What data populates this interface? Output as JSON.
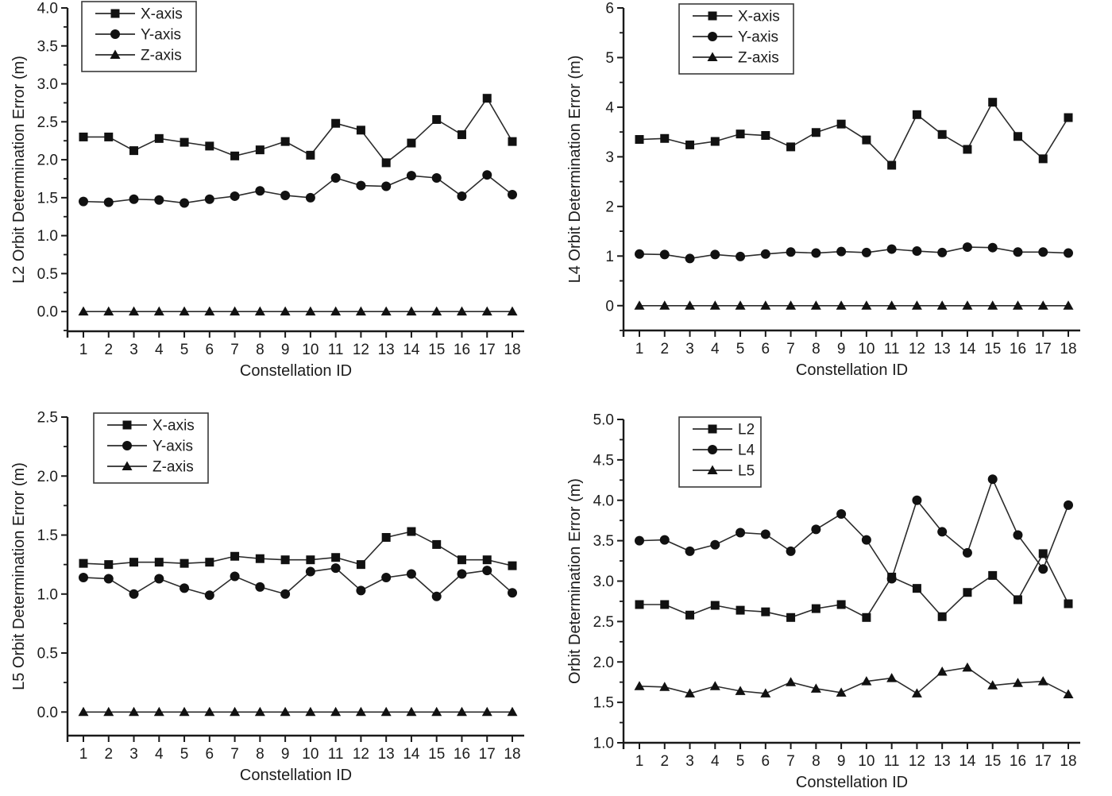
{
  "figure": {
    "background": "#ffffff",
    "rows": 2,
    "cols": 2
  },
  "colors": {
    "axis": "#1a1a1a",
    "line": "#2b2b2b",
    "marker": "#111111",
    "text": "#1c1c1c",
    "legend_border": "#3a3a3a",
    "legend_fill": "#ffffff"
  },
  "chart_data": [
    {
      "id": "l2-orbit-error",
      "type": "line",
      "title": "",
      "xlabel": "Constellation ID",
      "ylabel": "L2 Orbit Determination Error (m)",
      "x": [
        1,
        2,
        3,
        4,
        5,
        6,
        7,
        8,
        9,
        10,
        11,
        12,
        13,
        14,
        15,
        16,
        17,
        18
      ],
      "ylim": [
        0.0,
        4.0
      ],
      "ytick_step": 0.5,
      "ytick_minor_step": 0.25,
      "ytick_decimals": 1,
      "grid": false,
      "legend_position": "top-left-inside",
      "series": [
        {
          "name": "X-axis",
          "marker": "square",
          "values": [
            2.3,
            2.3,
            2.12,
            2.28,
            2.23,
            2.18,
            2.05,
            2.13,
            2.24,
            2.06,
            2.48,
            2.39,
            1.96,
            2.22,
            2.53,
            2.33,
            2.81,
            2.24
          ]
        },
        {
          "name": "Y-axis",
          "marker": "circle",
          "values": [
            1.45,
            1.44,
            1.48,
            1.47,
            1.43,
            1.48,
            1.52,
            1.59,
            1.53,
            1.5,
            1.76,
            1.66,
            1.65,
            1.79,
            1.76,
            1.52,
            1.8,
            1.54
          ]
        },
        {
          "name": "Z-axis",
          "marker": "triangle",
          "values": [
            0.0,
            0.0,
            0.0,
            0.0,
            0.0,
            0.0,
            0.0,
            0.0,
            0.0,
            0.0,
            0.0,
            0.0,
            0.0,
            0.0,
            0.0,
            0.0,
            0.0,
            0.0
          ]
        }
      ]
    },
    {
      "id": "l4-orbit-error",
      "type": "line",
      "title": "",
      "xlabel": "Constellation ID",
      "ylabel": "L4 Orbit Determination Error (m)",
      "x": [
        1,
        2,
        3,
        4,
        5,
        6,
        7,
        8,
        9,
        10,
        11,
        12,
        13,
        14,
        15,
        16,
        17,
        18
      ],
      "ylim": [
        0,
        6
      ],
      "ytick_step": 1,
      "ytick_minor_step": 0.5,
      "ytick_decimals": 0,
      "grid": false,
      "legend_position": "top-left-inside",
      "series": [
        {
          "name": "X-axis",
          "marker": "square",
          "values": [
            3.35,
            3.37,
            3.24,
            3.31,
            3.46,
            3.43,
            3.2,
            3.49,
            3.66,
            3.34,
            2.83,
            3.85,
            3.45,
            3.15,
            4.1,
            3.41,
            2.96,
            3.79
          ]
        },
        {
          "name": "Y-axis",
          "marker": "circle",
          "values": [
            1.04,
            1.03,
            0.95,
            1.03,
            0.99,
            1.04,
            1.08,
            1.06,
            1.09,
            1.07,
            1.14,
            1.1,
            1.07,
            1.18,
            1.17,
            1.08,
            1.08,
            1.06
          ]
        },
        {
          "name": "Z-axis",
          "marker": "triangle",
          "values": [
            0.0,
            0.0,
            0.0,
            0.0,
            0.0,
            0.0,
            0.0,
            0.0,
            0.0,
            0.0,
            0.0,
            0.0,
            0.0,
            0.0,
            0.0,
            0.0,
            0.0,
            0.0
          ]
        }
      ]
    },
    {
      "id": "l5-orbit-error",
      "type": "line",
      "title": "",
      "xlabel": "Constellation ID",
      "ylabel": "L5 Orbit Determination Error (m)",
      "x": [
        1,
        2,
        3,
        4,
        5,
        6,
        7,
        8,
        9,
        10,
        11,
        12,
        13,
        14,
        15,
        16,
        17,
        18
      ],
      "ylim": [
        0.0,
        2.5
      ],
      "ytick_step": 0.5,
      "ytick_minor_step": 0.25,
      "ytick_decimals": 1,
      "grid": false,
      "legend_position": "top-left-inside",
      "series": [
        {
          "name": "X-axis",
          "marker": "square",
          "values": [
            1.26,
            1.25,
            1.27,
            1.27,
            1.26,
            1.27,
            1.32,
            1.3,
            1.29,
            1.29,
            1.31,
            1.25,
            1.48,
            1.53,
            1.42,
            1.29,
            1.29,
            1.24
          ]
        },
        {
          "name": "Y-axis",
          "marker": "circle",
          "values": [
            1.14,
            1.13,
            1.0,
            1.13,
            1.05,
            0.99,
            1.15,
            1.06,
            1.0,
            1.19,
            1.22,
            1.03,
            1.14,
            1.17,
            0.98,
            1.17,
            1.2,
            1.01
          ]
        },
        {
          "name": "Z-axis",
          "marker": "triangle",
          "values": [
            0.0,
            0.0,
            0.0,
            0.0,
            0.0,
            0.0,
            0.0,
            0.0,
            0.0,
            0.0,
            0.0,
            0.0,
            0.0,
            0.0,
            0.0,
            0.0,
            0.0,
            0.0
          ]
        }
      ]
    },
    {
      "id": "combined-orbit-error",
      "type": "line",
      "title": "",
      "xlabel": "Constellation ID",
      "ylabel": "Orbit Determination Error (m)",
      "x": [
        1,
        2,
        3,
        4,
        5,
        6,
        7,
        8,
        9,
        10,
        11,
        12,
        13,
        14,
        15,
        16,
        17,
        18
      ],
      "ylim": [
        1.0,
        5.0
      ],
      "ytick_step": 0.5,
      "ytick_minor_step": 0.25,
      "ytick_decimals": 1,
      "grid": false,
      "legend_position": "top-left-inside",
      "series": [
        {
          "name": "L2",
          "marker": "square",
          "values": [
            2.71,
            2.71,
            2.58,
            2.7,
            2.64,
            2.62,
            2.55,
            2.66,
            2.71,
            2.55,
            3.05,
            2.91,
            2.56,
            2.86,
            3.07,
            2.77,
            3.34,
            2.72
          ]
        },
        {
          "name": "L4",
          "marker": "circle",
          "values": [
            3.5,
            3.51,
            3.37,
            3.45,
            3.6,
            3.58,
            3.37,
            3.64,
            3.83,
            3.51,
            3.03,
            4.0,
            3.61,
            3.35,
            4.26,
            3.57,
            3.15,
            3.94
          ]
        },
        {
          "name": "L5",
          "marker": "triangle",
          "values": [
            1.7,
            1.69,
            1.61,
            1.7,
            1.64,
            1.61,
            1.75,
            1.67,
            1.62,
            1.76,
            1.8,
            1.61,
            1.88,
            1.93,
            1.71,
            1.74,
            1.76,
            1.6
          ]
        }
      ]
    }
  ]
}
